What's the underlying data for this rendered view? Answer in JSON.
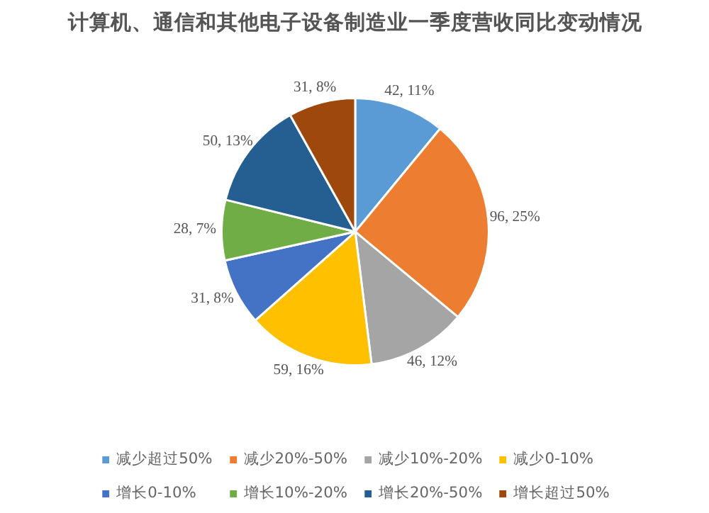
{
  "chart_data": {
    "type": "pie",
    "title": "计算机、通信和其他电子设备制造业一季度营收同比变动情况",
    "categories": [
      "减少超过50%",
      "减少20%-50%",
      "减少10%-20%",
      "减少0-10%",
      "增长0-10%",
      "增长10%-20%",
      "增长20%-50%",
      "增长超过50%"
    ],
    "values": [
      42,
      96,
      46,
      59,
      31,
      28,
      50,
      31
    ],
    "value_labels": [
      "42, 11%",
      "96, 25%",
      "46, 12%",
      "59, 16%",
      "31, 8%",
      "28, 7%",
      "50, 13%",
      "31, 8%"
    ],
    "colors": [
      "#5b9bd5",
      "#ed7d31",
      "#a5a5a5",
      "#ffc000",
      "#4472c4",
      "#70ad47",
      "#255e91",
      "#9e480e"
    ],
    "legend": "bottom"
  }
}
